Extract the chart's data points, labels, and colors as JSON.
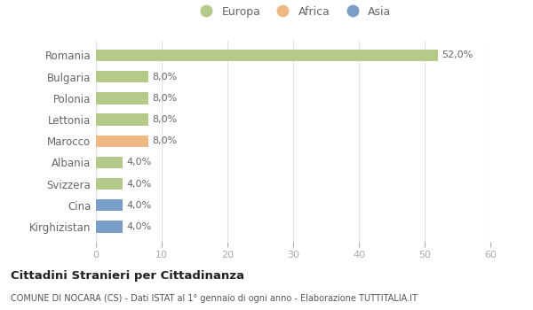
{
  "categories": [
    "Romania",
    "Bulgaria",
    "Polonia",
    "Lettonia",
    "Marocco",
    "Albania",
    "Svizzera",
    "Cina",
    "Kirghizistan"
  ],
  "values": [
    52.0,
    8.0,
    8.0,
    8.0,
    8.0,
    4.0,
    4.0,
    4.0,
    4.0
  ],
  "colors": [
    "#b5c98a",
    "#b5c98a",
    "#b5c98a",
    "#b5c98a",
    "#f0b882",
    "#b5c98a",
    "#b5c98a",
    "#7a9ec7",
    "#7a9ec7"
  ],
  "bar_labels": [
    "52,0%",
    "8,0%",
    "8,0%",
    "8,0%",
    "8,0%",
    "4,0%",
    "4,0%",
    "4,0%",
    "4,0%"
  ],
  "xlim": [
    0,
    60
  ],
  "xticks": [
    0,
    10,
    20,
    30,
    40,
    50,
    60
  ],
  "legend_labels": [
    "Europa",
    "Africa",
    "Asia"
  ],
  "legend_colors": [
    "#b5c98a",
    "#f0b882",
    "#7a9ec7"
  ],
  "title": "Cittadini Stranieri per Cittadinanza",
  "subtitle": "COMUNE DI NOCARA (CS) - Dati ISTAT al 1° gennaio di ogni anno - Elaborazione TUTTITALIA.IT",
  "background_color": "#ffffff",
  "grid_color": "#e0e0e0",
  "label_color": "#666666",
  "bar_height": 0.55
}
